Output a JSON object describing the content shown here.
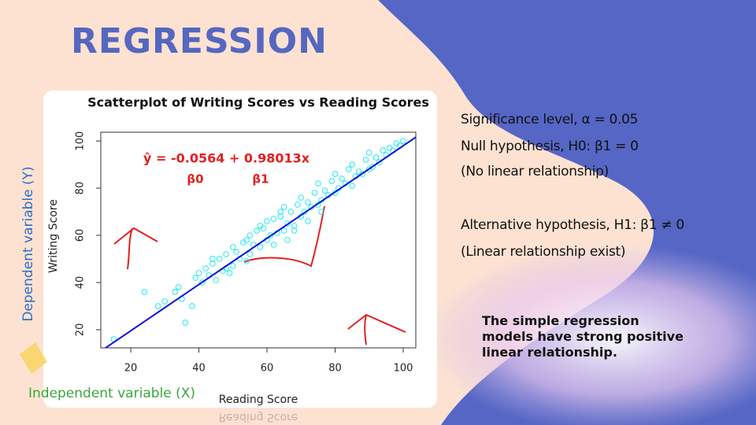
{
  "title": "REGRESSION",
  "y_role": "Dependent variable (Y)",
  "x_role": "Independent variable (X)",
  "notes": [
    "Significance level, α = 0.05",
    "Null hypothesis, H0: β1 = 0",
    "(No linear relationship)",
    "Alternative hypothesis, H1: β1 ≠ 0",
    "(Linear relationship exist)"
  ],
  "conclusion": "The simple regression models have strong positive linear relationship.",
  "chart_data": {
    "type": "scatter",
    "title": "Scatterplot of Writing Scores vs Reading Scores",
    "x_label": "Reading Score",
    "y_label": "Writing Score",
    "xlim": [
      11.2,
      103.7
    ],
    "ylim": [
      12.3,
      103.7
    ],
    "xticks": [
      20,
      40,
      60,
      80,
      100
    ],
    "yticks": [
      20,
      40,
      60,
      80,
      100
    ],
    "color": "#22e8f0",
    "x": [
      15,
      24,
      28,
      30,
      33,
      34,
      35,
      36,
      38,
      39,
      40,
      41,
      42,
      43,
      44,
      45,
      46,
      47,
      48,
      49,
      50,
      50,
      51,
      52,
      53,
      54,
      55,
      55,
      56,
      57,
      58,
      59,
      60,
      60,
      61,
      62,
      63,
      64,
      65,
      65,
      66,
      67,
      68,
      69,
      70,
      70,
      71,
      72,
      73,
      74,
      75,
      75,
      76,
      77,
      78,
      79,
      80,
      80,
      81,
      82,
      83,
      84,
      85,
      85,
      86,
      87,
      88,
      89,
      90,
      90,
      91,
      92,
      93,
      94,
      95,
      96,
      97,
      98,
      99,
      100,
      58,
      62,
      66,
      72,
      76,
      68,
      64,
      54,
      48,
      44
    ],
    "values": [
      16,
      36,
      30,
      32,
      36,
      38,
      33,
      23,
      30,
      42,
      44,
      40,
      46,
      43,
      48,
      41,
      50,
      45,
      52,
      44,
      55,
      47,
      53,
      50,
      57,
      49,
      60,
      52,
      56,
      62,
      55,
      63,
      58,
      66,
      60,
      67,
      61,
      68,
      62,
      72,
      65,
      70,
      64,
      73,
      68,
      76,
      70,
      74,
      72,
      78,
      73,
      82,
      75,
      79,
      77,
      83,
      78,
      86,
      80,
      84,
      82,
      88,
      81,
      90,
      85,
      87,
      86,
      92,
      88,
      95,
      89,
      93,
      91,
      96,
      94,
      97,
      96,
      99,
      98,
      100,
      64,
      56,
      58,
      66,
      70,
      62,
      70,
      58,
      46,
      50
    ],
    "regression": {
      "equation": "ŷ = -0.0564 + 0.98013x",
      "intercept": -0.0564,
      "slope": 0.98013,
      "intercept_label": "β0",
      "slope_label": "β1",
      "color": "#1010dd"
    }
  }
}
